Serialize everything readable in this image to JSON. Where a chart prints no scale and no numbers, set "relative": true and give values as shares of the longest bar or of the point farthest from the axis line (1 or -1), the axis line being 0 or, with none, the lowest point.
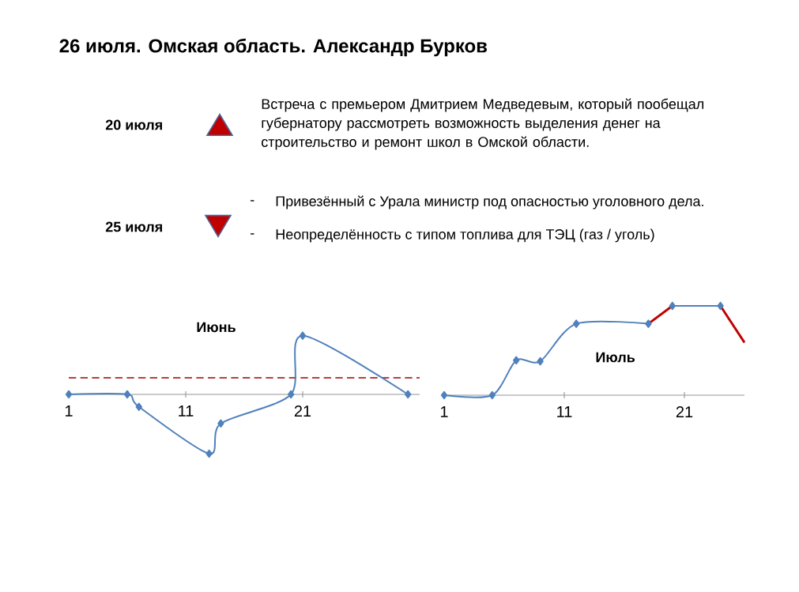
{
  "chart_data": [
    {
      "type": "other",
      "title": "26 июля. Омская область. Александр Бурков",
      "annotations": [
        "20 июля",
        "Встреча с премьером Дмитрием Медведевым, который пообещал губернатору рассмотреть возможность выделения денег на строительство и ремонт школ в Омской области.",
        "25 июля",
        "-",
        "Привезённый с Урала министр под опасностью уголовного дела.",
        "-",
        "Неопределённость с типом топлива для ТЭЦ (газ / уголь)"
      ]
    },
    {
      "type": "line",
      "title": "Июнь",
      "relative": true,
      "xlim": [
        1,
        31
      ],
      "xticks": [
        1,
        11,
        21
      ],
      "marker": "diamond",
      "series": [
        {
          "color": "#4f81bd",
          "x": [
            1,
            6,
            7,
            13,
            14,
            20,
            21,
            30
          ],
          "values": [
            0,
            0,
            -0.21,
            -1,
            -0.49,
            0,
            0.99,
            0
          ]
        }
      ],
      "ref_lines": [
        {
          "axis": "y",
          "value": 0.28,
          "color": "#a00000",
          "line_style": "dashed"
        }
      ]
    },
    {
      "type": "line",
      "title": "Июль",
      "relative": true,
      "xlim": [
        1,
        26
      ],
      "xticks": [
        1,
        11,
        21
      ],
      "series": [
        {
          "color": "#4f81bd",
          "marker": "diamond",
          "x": [
            1,
            5,
            7,
            9,
            12,
            18
          ],
          "values": [
            0,
            0,
            0.39,
            0.38,
            0.8,
            0.8
          ]
        },
        {
          "color": "#c00000",
          "marker": "none",
          "x": [
            18,
            20
          ],
          "values": [
            0.8,
            1.0
          ]
        },
        {
          "color": "#4f81bd",
          "marker": "diamond",
          "x": [
            20,
            24
          ],
          "values": [
            1.0,
            1.0
          ]
        },
        {
          "color": "#c00000",
          "marker": "none",
          "x": [
            24,
            26
          ],
          "values": [
            1.0,
            0.59
          ]
        }
      ]
    }
  ]
}
